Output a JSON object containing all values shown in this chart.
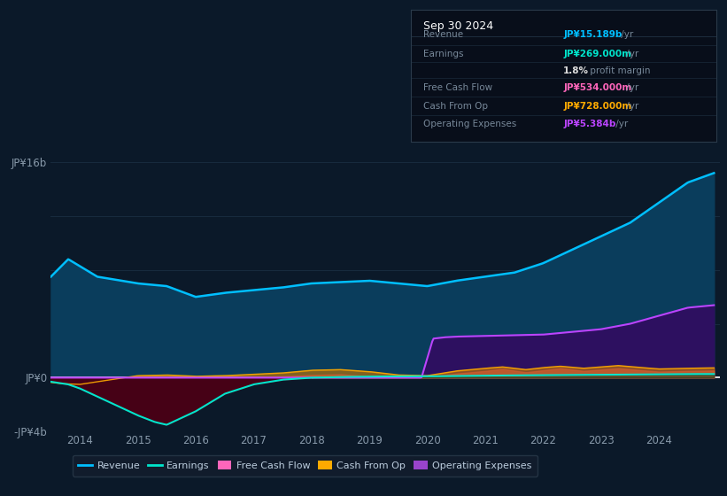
{
  "bg_color": "#0b1929",
  "plot_bg_color": "#0b1929",
  "title": "Sep 30 2024",
  "info_box_rows": [
    {
      "label": "Revenue",
      "value": "JP¥15.189b",
      "suffix": " /yr",
      "color": "#00bfff"
    },
    {
      "label": "Earnings",
      "value": "JP¥269.000m",
      "suffix": " /yr",
      "color": "#00e5cc"
    },
    {
      "label": "",
      "value": "1.8%",
      "suffix": " profit margin",
      "color": "#dddddd"
    },
    {
      "label": "Free Cash Flow",
      "value": "JP¥534.000m",
      "suffix": " /yr",
      "color": "#ff66bb"
    },
    {
      "label": "Cash From Op",
      "value": "JP¥728.000m",
      "suffix": " /yr",
      "color": "#ffaa00"
    },
    {
      "label": "Operating Expenses",
      "value": "JP¥5.384b",
      "suffix": " /yr",
      "color": "#bb44ff"
    }
  ],
  "ylim": [
    -4000000000.0,
    17000000000.0
  ],
  "ytick_vals": [
    -4000000000.0,
    0,
    16000000000.0
  ],
  "ytick_labels": [
    "-JP¥4b",
    "JP¥0",
    "JP¥16b"
  ],
  "xtick_vals": [
    2014,
    2015,
    2016,
    2017,
    2018,
    2019,
    2020,
    2021,
    2022,
    2023,
    2024
  ],
  "xtick_labels": [
    "2014",
    "2015",
    "2016",
    "2017",
    "2018",
    "2019",
    "2020",
    "2021",
    "2022",
    "2023",
    "2024"
  ],
  "grid_color": "#1a2e42",
  "zero_line_color": "#ffffff",
  "colors": {
    "revenue_line": "#00bfff",
    "revenue_fill": "#0a3d5c",
    "earnings_line": "#00e5cc",
    "earnings_neg_fill": "#4a0015",
    "earnings_pos_fill": "#003322",
    "cash_op_line": "#ffaa00",
    "free_cf_fill": "#cc3377",
    "cash_op_fill": "#cc7a00",
    "op_exp_line": "#bb44ff",
    "op_exp_fill": "#2d1060",
    "gray_fill": "#5a6a80"
  },
  "legend": [
    {
      "label": "Revenue",
      "color": "#00bfff",
      "type": "line"
    },
    {
      "label": "Earnings",
      "color": "#00e5cc",
      "type": "line"
    },
    {
      "label": "Free Cash Flow",
      "color": "#ff66bb",
      "type": "patch"
    },
    {
      "label": "Cash From Op",
      "color": "#ffaa00",
      "type": "patch"
    },
    {
      "label": "Operating Expenses",
      "color": "#9944cc",
      "type": "patch"
    }
  ]
}
